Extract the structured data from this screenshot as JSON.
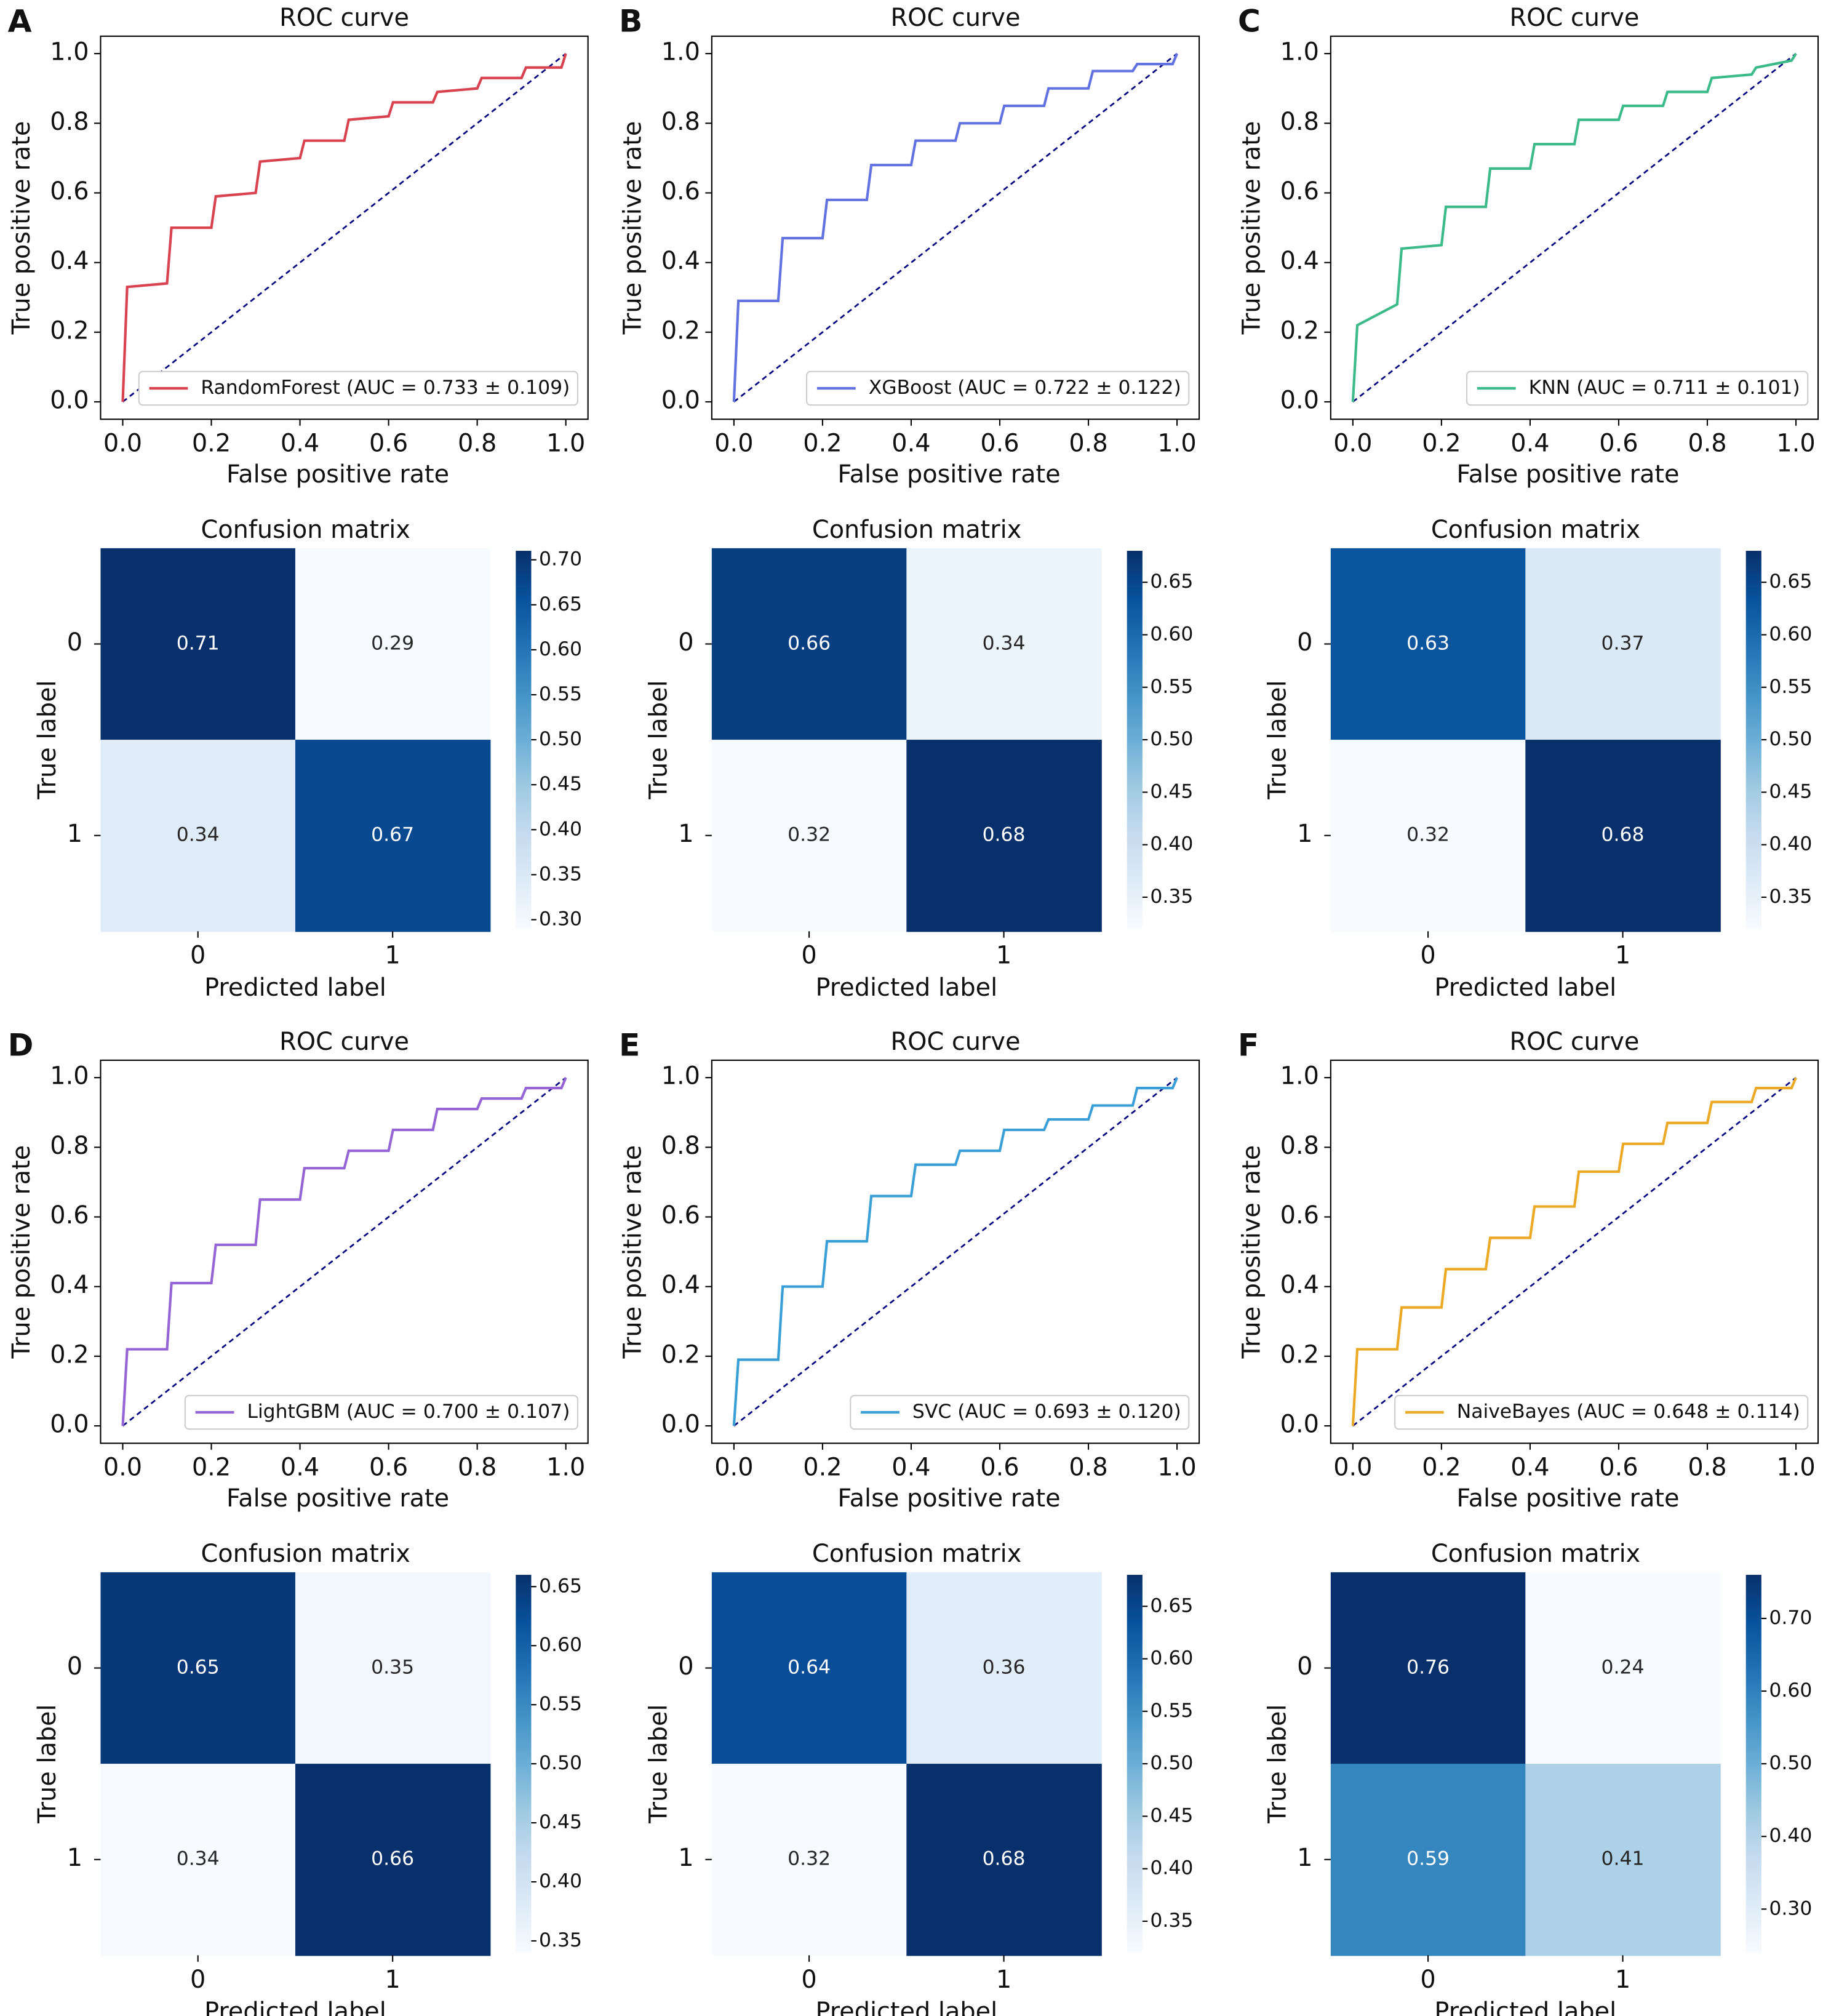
{
  "chart_data": [
    {
      "type": "line",
      "panel_label": "A",
      "title": "ROC curve",
      "xlabel": "False positive rate",
      "ylabel": "True positive rate",
      "x": [
        0,
        0.01,
        0.1,
        0.11,
        0.2,
        0.21,
        0.3,
        0.31,
        0.4,
        0.41,
        0.5,
        0.51,
        0.6,
        0.61,
        0.7,
        0.71,
        0.8,
        0.81,
        0.9,
        0.91,
        0.99,
        1
      ],
      "series": [
        {
          "name": "RandomForest (AUC = 0.733 ± 0.109)",
          "color": "#d9434f",
          "values": [
            0,
            0.33,
            0.34,
            0.5,
            0.5,
            0.59,
            0.6,
            0.69,
            0.7,
            0.75,
            0.75,
            0.81,
            0.82,
            0.86,
            0.86,
            0.89,
            0.9,
            0.93,
            0.93,
            0.96,
            0.96,
            1
          ]
        }
      ],
      "reference": {
        "x": [
          0,
          1
        ],
        "values": [
          0,
          1
        ],
        "color": "#000080",
        "style": "dashed"
      },
      "xlim": [
        -0.05,
        1.05
      ],
      "ylim": [
        -0.05,
        1.05
      ],
      "xticks": [
        {
          "value": 0,
          "label": "0.0"
        },
        0.2,
        0.4,
        0.6,
        0.8,
        {
          "value": 1,
          "label": "1.0"
        }
      ],
      "yticks": [
        {
          "value": 0,
          "label": "0.0"
        },
        0.2,
        0.4,
        0.6,
        0.8,
        {
          "value": 1,
          "label": "1.0"
        }
      ],
      "legend": "lower right"
    },
    {
      "type": "heatmap",
      "title": "Confusion matrix",
      "xlabel": "Predicted label",
      "ylabel": "True label",
      "x_categories": [
        "0",
        "1"
      ],
      "y_categories": [
        "0",
        "1"
      ],
      "values": [
        [
          0.71,
          0.29
        ],
        [
          0.34,
          0.67
        ]
      ],
      "colormap": "Blues",
      "clim": [
        0.29,
        0.71
      ],
      "cticks": [
        {
          "value": 0.3,
          "label": "0.30"
        },
        0.35,
        {
          "value": 0.4,
          "label": "0.40"
        },
        0.45,
        {
          "value": 0.5,
          "label": "0.50"
        },
        0.55,
        {
          "value": 0.6,
          "label": "0.60"
        },
        0.65,
        {
          "value": 0.7,
          "label": "0.70"
        }
      ]
    },
    {
      "type": "line",
      "panel_label": "B",
      "title": "ROC curve",
      "xlabel": "False positive rate",
      "ylabel": "True positive rate",
      "x": [
        0,
        0.01,
        0.1,
        0.11,
        0.2,
        0.21,
        0.3,
        0.31,
        0.4,
        0.41,
        0.5,
        0.51,
        0.6,
        0.61,
        0.7,
        0.71,
        0.8,
        0.81,
        0.9,
        0.91,
        0.99,
        1
      ],
      "series": [
        {
          "name": "XGBoost (AUC = 0.722 ± 0.122)",
          "color": "#6272e0",
          "values": [
            0,
            0.29,
            0.29,
            0.47,
            0.47,
            0.58,
            0.58,
            0.68,
            0.68,
            0.75,
            0.75,
            0.8,
            0.8,
            0.85,
            0.85,
            0.9,
            0.9,
            0.95,
            0.95,
            0.97,
            0.97,
            1
          ]
        }
      ],
      "reference": {
        "x": [
          0,
          1
        ],
        "values": [
          0,
          1
        ],
        "color": "#000080",
        "style": "dashed"
      },
      "xlim": [
        -0.05,
        1.05
      ],
      "ylim": [
        -0.05,
        1.05
      ],
      "xticks": [
        {
          "value": 0,
          "label": "0.0"
        },
        0.2,
        0.4,
        0.6,
        0.8,
        {
          "value": 1,
          "label": "1.0"
        }
      ],
      "yticks": [
        {
          "value": 0,
          "label": "0.0"
        },
        0.2,
        0.4,
        0.6,
        0.8,
        {
          "value": 1,
          "label": "1.0"
        }
      ],
      "legend": "lower right"
    },
    {
      "type": "heatmap",
      "title": "Confusion matrix",
      "xlabel": "Predicted label",
      "ylabel": "True label",
      "x_categories": [
        "0",
        "1"
      ],
      "y_categories": [
        "0",
        "1"
      ],
      "values": [
        [
          0.66,
          0.34
        ],
        [
          0.32,
          0.68
        ]
      ],
      "colormap": "Blues",
      "clim": [
        0.32,
        0.68
      ],
      "cticks": [
        0.35,
        {
          "value": 0.4,
          "label": "0.40"
        },
        0.45,
        {
          "value": 0.5,
          "label": "0.50"
        },
        0.55,
        {
          "value": 0.6,
          "label": "0.60"
        },
        0.65
      ]
    },
    {
      "type": "line",
      "panel_label": "C",
      "title": "ROC curve",
      "xlabel": "False positive rate",
      "ylabel": "True positive rate",
      "x": [
        0,
        0.01,
        0.1,
        0.11,
        0.2,
        0.21,
        0.3,
        0.31,
        0.4,
        0.41,
        0.5,
        0.51,
        0.6,
        0.61,
        0.7,
        0.71,
        0.8,
        0.81,
        0.9,
        0.91,
        0.99,
        1
      ],
      "series": [
        {
          "name": "KNN (AUC = 0.711 ± 0.101)",
          "color": "#3cba8a",
          "values": [
            0,
            0.22,
            0.28,
            0.44,
            0.45,
            0.56,
            0.56,
            0.67,
            0.67,
            0.74,
            0.74,
            0.81,
            0.81,
            0.85,
            0.85,
            0.89,
            0.89,
            0.93,
            0.94,
            0.96,
            0.98,
            1
          ]
        }
      ],
      "reference": {
        "x": [
          0,
          1
        ],
        "values": [
          0,
          1
        ],
        "color": "#000080",
        "style": "dashed"
      },
      "xlim": [
        -0.05,
        1.05
      ],
      "ylim": [
        -0.05,
        1.05
      ],
      "xticks": [
        {
          "value": 0,
          "label": "0.0"
        },
        0.2,
        0.4,
        0.6,
        0.8,
        {
          "value": 1,
          "label": "1.0"
        }
      ],
      "yticks": [
        {
          "value": 0,
          "label": "0.0"
        },
        0.2,
        0.4,
        0.6,
        0.8,
        {
          "value": 1,
          "label": "1.0"
        }
      ],
      "legend": "lower right"
    },
    {
      "type": "heatmap",
      "title": "Confusion matrix",
      "xlabel": "Predicted label",
      "ylabel": "True label",
      "x_categories": [
        "0",
        "1"
      ],
      "y_categories": [
        "0",
        "1"
      ],
      "values": [
        [
          0.63,
          0.37
        ],
        [
          0.32,
          0.68
        ]
      ],
      "colormap": "Blues",
      "clim": [
        0.32,
        0.68
      ],
      "cticks": [
        0.35,
        {
          "value": 0.4,
          "label": "0.40"
        },
        0.45,
        {
          "value": 0.5,
          "label": "0.50"
        },
        0.55,
        {
          "value": 0.6,
          "label": "0.60"
        },
        0.65
      ]
    },
    {
      "type": "line",
      "panel_label": "D",
      "title": "ROC curve",
      "xlabel": "False positive rate",
      "ylabel": "True positive rate",
      "x": [
        0,
        0.01,
        0.1,
        0.11,
        0.2,
        0.21,
        0.3,
        0.31,
        0.4,
        0.41,
        0.5,
        0.51,
        0.6,
        0.61,
        0.7,
        0.71,
        0.8,
        0.81,
        0.9,
        0.91,
        0.99,
        1
      ],
      "series": [
        {
          "name": "LightGBM (AUC = 0.700 ± 0.107)",
          "color": "#9565d6",
          "values": [
            0,
            0.22,
            0.22,
            0.41,
            0.41,
            0.52,
            0.52,
            0.65,
            0.65,
            0.74,
            0.74,
            0.79,
            0.79,
            0.85,
            0.85,
            0.91,
            0.91,
            0.94,
            0.94,
            0.97,
            0.97,
            1
          ]
        }
      ],
      "reference": {
        "x": [
          0,
          1
        ],
        "values": [
          0,
          1
        ],
        "color": "#000080",
        "style": "dashed"
      },
      "xlim": [
        -0.05,
        1.05
      ],
      "ylim": [
        -0.05,
        1.05
      ],
      "xticks": [
        {
          "value": 0,
          "label": "0.0"
        },
        0.2,
        0.4,
        0.6,
        0.8,
        {
          "value": 1,
          "label": "1.0"
        }
      ],
      "yticks": [
        {
          "value": 0,
          "label": "0.0"
        },
        0.2,
        0.4,
        0.6,
        0.8,
        {
          "value": 1,
          "label": "1.0"
        }
      ],
      "legend": "lower right"
    },
    {
      "type": "heatmap",
      "title": "Confusion matrix",
      "xlabel": "Predicted label",
      "ylabel": "True label",
      "x_categories": [
        "0",
        "1"
      ],
      "y_categories": [
        "0",
        "1"
      ],
      "values": [
        [
          0.65,
          0.35
        ],
        [
          0.34,
          0.66
        ]
      ],
      "colormap": "Blues",
      "clim": [
        0.34,
        0.66
      ],
      "cticks": [
        0.35,
        {
          "value": 0.4,
          "label": "0.40"
        },
        0.45,
        {
          "value": 0.5,
          "label": "0.50"
        },
        0.55,
        {
          "value": 0.6,
          "label": "0.60"
        },
        0.65
      ]
    },
    {
      "type": "line",
      "panel_label": "E",
      "title": "ROC curve",
      "xlabel": "False positive rate",
      "ylabel": "True positive rate",
      "x": [
        0,
        0.01,
        0.1,
        0.11,
        0.2,
        0.21,
        0.3,
        0.31,
        0.4,
        0.41,
        0.5,
        0.51,
        0.6,
        0.61,
        0.7,
        0.71,
        0.8,
        0.81,
        0.9,
        0.91,
        0.99,
        1
      ],
      "series": [
        {
          "name": "SVC (AUC = 0.693 ± 0.120)",
          "color": "#3a9fd6",
          "values": [
            0,
            0.19,
            0.19,
            0.4,
            0.4,
            0.53,
            0.53,
            0.66,
            0.66,
            0.75,
            0.75,
            0.79,
            0.79,
            0.85,
            0.85,
            0.88,
            0.88,
            0.92,
            0.92,
            0.97,
            0.97,
            1
          ]
        }
      ],
      "reference": {
        "x": [
          0,
          1
        ],
        "values": [
          0,
          1
        ],
        "color": "#000080",
        "style": "dashed"
      },
      "xlim": [
        -0.05,
        1.05
      ],
      "ylim": [
        -0.05,
        1.05
      ],
      "xticks": [
        {
          "value": 0,
          "label": "0.0"
        },
        0.2,
        0.4,
        0.6,
        0.8,
        {
          "value": 1,
          "label": "1.0"
        }
      ],
      "yticks": [
        {
          "value": 0,
          "label": "0.0"
        },
        0.2,
        0.4,
        0.6,
        0.8,
        {
          "value": 1,
          "label": "1.0"
        }
      ],
      "legend": "lower right"
    },
    {
      "type": "heatmap",
      "title": "Confusion matrix",
      "xlabel": "Predicted label",
      "ylabel": "True label",
      "x_categories": [
        "0",
        "1"
      ],
      "y_categories": [
        "0",
        "1"
      ],
      "values": [
        [
          0.64,
          0.36
        ],
        [
          0.32,
          0.68
        ]
      ],
      "colormap": "Blues",
      "clim": [
        0.32,
        0.68
      ],
      "cticks": [
        0.35,
        {
          "value": 0.4,
          "label": "0.40"
        },
        0.45,
        {
          "value": 0.5,
          "label": "0.50"
        },
        0.55,
        {
          "value": 0.6,
          "label": "0.60"
        },
        0.65
      ]
    },
    {
      "type": "line",
      "panel_label": "F",
      "title": "ROC curve",
      "xlabel": "False positive rate",
      "ylabel": "True positive rate",
      "x": [
        0,
        0.01,
        0.1,
        0.11,
        0.2,
        0.21,
        0.3,
        0.31,
        0.4,
        0.41,
        0.5,
        0.51,
        0.6,
        0.61,
        0.7,
        0.71,
        0.8,
        0.81,
        0.9,
        0.91,
        0.99,
        1
      ],
      "series": [
        {
          "name": "NaiveBayes (AUC = 0.648 ± 0.114)",
          "color": "#eba925",
          "values": [
            0,
            0.22,
            0.22,
            0.34,
            0.34,
            0.45,
            0.45,
            0.54,
            0.54,
            0.63,
            0.63,
            0.73,
            0.73,
            0.81,
            0.81,
            0.87,
            0.87,
            0.93,
            0.93,
            0.97,
            0.97,
            1
          ]
        }
      ],
      "reference": {
        "x": [
          0,
          1
        ],
        "values": [
          0,
          1
        ],
        "color": "#000080",
        "style": "dashed"
      },
      "xlim": [
        -0.05,
        1.05
      ],
      "ylim": [
        -0.05,
        1.05
      ],
      "xticks": [
        {
          "value": 0,
          "label": "0.0"
        },
        0.2,
        0.4,
        0.6,
        0.8,
        {
          "value": 1,
          "label": "1.0"
        }
      ],
      "yticks": [
        {
          "value": 0,
          "label": "0.0"
        },
        0.2,
        0.4,
        0.6,
        0.8,
        {
          "value": 1,
          "label": "1.0"
        }
      ],
      "legend": "lower right"
    },
    {
      "type": "heatmap",
      "title": "Confusion matrix",
      "xlabel": "Predicted label",
      "ylabel": "True label",
      "x_categories": [
        "0",
        "1"
      ],
      "y_categories": [
        "0",
        "1"
      ],
      "values": [
        [
          0.76,
          0.24
        ],
        [
          0.59,
          0.41
        ]
      ],
      "colormap": "Blues",
      "clim": [
        0.24,
        0.76
      ],
      "cticks": [
        {
          "value": 0.3,
          "label": "0.30"
        },
        {
          "value": 0.4,
          "label": "0.40"
        },
        {
          "value": 0.5,
          "label": "0.50"
        },
        {
          "value": 0.6,
          "label": "0.60"
        },
        {
          "value": 0.7,
          "label": "0.70"
        }
      ]
    }
  ]
}
